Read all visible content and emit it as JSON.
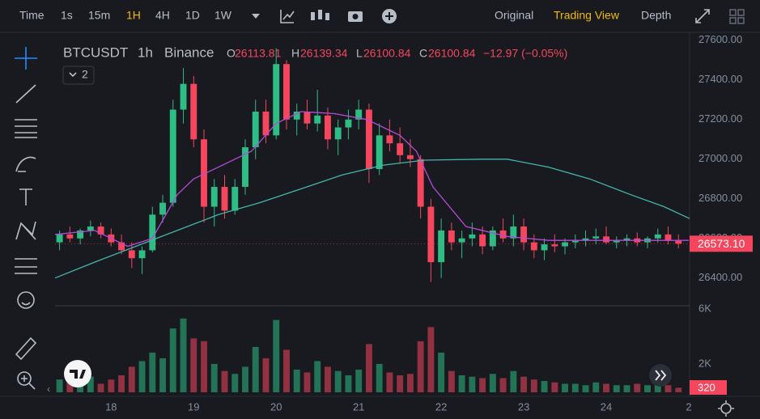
{
  "toolbar": {
    "time": "Time",
    "intervals": [
      "1s",
      "15m",
      "1H",
      "4H",
      "1D",
      "1W"
    ],
    "views": [
      "Original",
      "Trading View",
      "Depth"
    ]
  },
  "header": {
    "symbol": "BTCUSDT",
    "interval": "1h",
    "exchange": "Binance",
    "o_key": "O",
    "o": "26113.81",
    "h_key": "H",
    "h": "26139.34",
    "l_key": "L",
    "l": "26100.84",
    "c_key": "C",
    "c": "26100.84",
    "change": "−12.97 (−0.05%)",
    "indicators": "2"
  },
  "chart_data": {
    "type": "candlestick",
    "up_color": "#2ebd85",
    "down_color": "#f6465d",
    "xlim": [
      17.32,
      25.01
    ],
    "xticks": [
      18,
      19,
      20,
      21,
      22,
      23,
      24,
      {
        "value": 25,
        "label": "2"
      }
    ],
    "ylim": [
      26260,
      27640
    ],
    "yticks": [
      {
        "value": 27600,
        "label": "27600.00"
      },
      {
        "value": 27400,
        "label": "27400.00"
      },
      {
        "value": 27200,
        "label": "27200.00"
      },
      {
        "value": 27000,
        "label": "27000.00"
      },
      {
        "value": 26800,
        "label": "26800.00"
      },
      {
        "value": 26600,
        "label": "26600.00"
      },
      {
        "value": 26400,
        "label": "26400.00"
      }
    ],
    "grid": false,
    "x": [
      17.375,
      17.5,
      17.625,
      17.75,
      17.875,
      18.0,
      18.125,
      18.25,
      18.375,
      18.5,
      18.625,
      18.75,
      18.875,
      19.0,
      19.125,
      19.25,
      19.375,
      19.5,
      19.625,
      19.75,
      19.875,
      20.0,
      20.125,
      20.25,
      20.375,
      20.5,
      20.625,
      20.75,
      20.875,
      21.0,
      21.125,
      21.25,
      21.375,
      21.5,
      21.625,
      21.75,
      21.875,
      22.0,
      22.125,
      22.25,
      22.375,
      22.5,
      22.625,
      22.75,
      22.875,
      23.0,
      23.125,
      23.25,
      23.375,
      23.5,
      23.625,
      23.75,
      23.875,
      24.0,
      24.125,
      24.25,
      24.375,
      24.5,
      24.625,
      24.75,
      24.875
    ],
    "candles": [
      [
        26580,
        26640,
        26540,
        26620
      ],
      [
        26620,
        26660,
        26580,
        26600
      ],
      [
        26600,
        26650,
        26570,
        26640
      ],
      [
        26640,
        26690,
        26610,
        26660
      ],
      [
        26660,
        26680,
        26600,
        26620
      ],
      [
        26620,
        26650,
        26560,
        26580
      ],
      [
        26580,
        26620,
        26520,
        26540
      ],
      [
        26540,
        26580,
        26450,
        26500
      ],
      [
        26500,
        26560,
        26420,
        26540
      ],
      [
        26540,
        26760,
        26530,
        26720
      ],
      [
        26720,
        26820,
        26680,
        26780
      ],
      [
        26780,
        27300,
        26760,
        27250
      ],
      [
        27250,
        27460,
        27180,
        27380
      ],
      [
        27380,
        27420,
        27060,
        27100
      ],
      [
        27100,
        27150,
        26680,
        26760
      ],
      [
        26760,
        26900,
        26660,
        26860
      ],
      [
        26860,
        26920,
        26700,
        26740
      ],
      [
        26740,
        26900,
        26720,
        26860
      ],
      [
        26860,
        27100,
        26820,
        27060
      ],
      [
        27060,
        27300,
        27000,
        27240
      ],
      [
        27240,
        27300,
        27080,
        27120
      ],
      [
        27120,
        27560,
        27100,
        27480
      ],
      [
        27480,
        27500,
        27150,
        27200
      ],
      [
        27200,
        27280,
        27120,
        27240
      ],
      [
        27240,
        27300,
        27150,
        27180
      ],
      [
        27180,
        27350,
        27140,
        27220
      ],
      [
        27220,
        27260,
        27050,
        27100
      ],
      [
        27100,
        27200,
        27020,
        27160
      ],
      [
        27160,
        27250,
        27100,
        27200
      ],
      [
        27200,
        27300,
        27150,
        27250
      ],
      [
        27250,
        27280,
        26880,
        26950
      ],
      [
        26950,
        27180,
        26920,
        27120
      ],
      [
        27120,
        27200,
        27040,
        27080
      ],
      [
        27080,
        27160,
        26980,
        27020
      ],
      [
        27020,
        27100,
        26960,
        27000
      ],
      [
        27000,
        27020,
        26700,
        26760
      ],
      [
        26760,
        26800,
        26380,
        26480
      ],
      [
        26480,
        26700,
        26400,
        26640
      ],
      [
        26640,
        26680,
        26540,
        26580
      ],
      [
        26580,
        26640,
        26500,
        26600
      ],
      [
        26600,
        26680,
        26560,
        26620
      ],
      [
        26620,
        26660,
        26520,
        26560
      ],
      [
        26560,
        26660,
        26540,
        26640
      ],
      [
        26640,
        26700,
        26580,
        26600
      ],
      [
        26600,
        26720,
        26560,
        26660
      ],
      [
        26660,
        26700,
        26540,
        26580
      ],
      [
        26580,
        26620,
        26500,
        26540
      ],
      [
        26540,
        26600,
        26490,
        26570
      ],
      [
        26570,
        26620,
        26530,
        26560
      ],
      [
        26560,
        26600,
        26520,
        26580
      ],
      [
        26580,
        26620,
        26550,
        26590
      ],
      [
        26590,
        26640,
        26560,
        26600
      ],
      [
        26600,
        26650,
        26570,
        26610
      ],
      [
        26610,
        26660,
        26570,
        26580
      ],
      [
        26580,
        26610,
        26550,
        26590
      ],
      [
        26590,
        26620,
        26560,
        26600
      ],
      [
        26600,
        26630,
        26560,
        26580
      ],
      [
        26580,
        26610,
        26550,
        26600
      ],
      [
        26600,
        26650,
        26580,
        26620
      ],
      [
        26620,
        26660,
        26570,
        26590
      ],
      [
        26590,
        26620,
        26550,
        26573.1
      ]
    ],
    "volumes": [
      900,
      700,
      800,
      1100,
      600,
      900,
      1200,
      1800,
      2200,
      2800,
      2400,
      4500,
      5200,
      3800,
      3600,
      2000,
      1500,
      1300,
      1800,
      3200,
      2400,
      5100,
      3000,
      1600,
      1400,
      2200,
      1800,
      1500,
      1200,
      1600,
      3400,
      2000,
      1400,
      1200,
      1300,
      3600,
      4600,
      2800,
      1500,
      1200,
      1100,
      1000,
      1300,
      1000,
      1500,
      1100,
      900,
      800,
      700,
      600,
      600,
      500,
      700,
      600,
      500,
      500,
      600,
      500,
      600,
      500,
      320
    ],
    "vlim": [
      0,
      6100
    ],
    "vticks": [
      {
        "value": 6000,
        "label": "6K"
      },
      {
        "value": 2000,
        "label": "2K"
      }
    ],
    "lines": [
      {
        "color": "#b54bd6",
        "x": [
          17.32,
          17.8,
          18.2,
          18.5,
          18.8,
          19.0,
          19.3,
          19.7,
          20.0,
          20.3,
          20.7,
          21.1,
          21.5,
          21.7,
          21.9,
          22.3,
          22.8,
          23.3,
          24.0,
          25.0
        ],
        "values": [
          26620,
          26640,
          26560,
          26600,
          26820,
          26900,
          26960,
          27040,
          27180,
          27240,
          27230,
          27200,
          27120,
          27040,
          26860,
          26660,
          26610,
          26590,
          26590,
          26590
        ]
      },
      {
        "color": "#45b5ad",
        "x": [
          17.32,
          17.8,
          18.3,
          18.8,
          19.3,
          19.8,
          20.3,
          20.8,
          21.3,
          21.8,
          22.5,
          22.8,
          23.3,
          23.8,
          24.3,
          24.7,
          25.01
        ],
        "values": [
          26400,
          26480,
          26560,
          26640,
          26720,
          26780,
          26850,
          26920,
          26970,
          26995,
          27000,
          27000,
          26960,
          26900,
          26820,
          26760,
          26700
        ]
      }
    ],
    "last_price": 26573.1,
    "last_price_label": "26573.10",
    "last_volume": 320
  }
}
